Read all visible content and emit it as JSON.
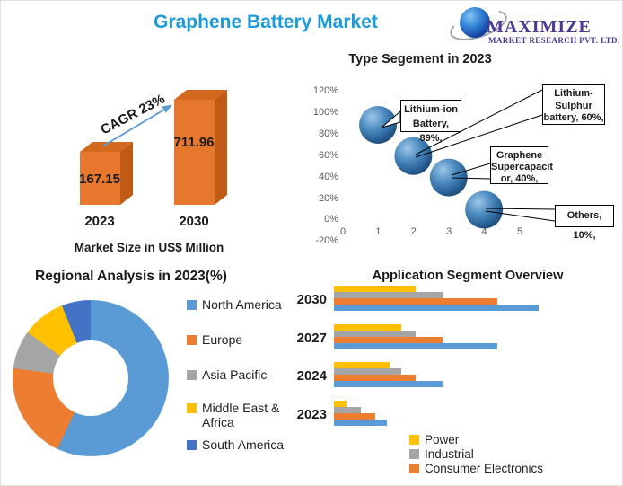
{
  "header": {
    "title": "Graphene Battery Market",
    "logo": {
      "name": "MAXIMIZE",
      "subtitle": "MARKET RESEARCH PVT. LTD."
    }
  },
  "palette": {
    "title_blue": "#1B9BD8",
    "logo_purple": "#4C3A93",
    "chart_blue": "#5B9BD5",
    "orange": "#ED7D31",
    "gray": "#A5A5A5",
    "yellow": "#FFC000",
    "dark_blue": "#4472C4"
  },
  "chart_data": [
    {
      "id": "market_size",
      "type": "bar",
      "title": "Market Size in US$ Million",
      "annotation": "CAGR 23%",
      "categories": [
        "2023",
        "2030"
      ],
      "values": [
        167.15,
        711.96
      ],
      "value_labels": [
        "167.15",
        "711.96"
      ],
      "ylabel": "",
      "colors": {
        "front": "#E8772E",
        "side": "#BF5B15",
        "top": "#D2691E"
      },
      "arrow_color": "#5B9BD5"
    },
    {
      "id": "type_segment",
      "type": "scatter",
      "title": "Type Segement in 2023",
      "x_ticks": [
        "0",
        "1",
        "2",
        "3",
        "4",
        "5"
      ],
      "y_ticks": [
        "120%",
        "100%",
        "80%",
        "60%",
        "40%",
        "20%",
        "0%",
        "-20%"
      ],
      "xlim": [
        0,
        5
      ],
      "ylim_pct": [
        -20,
        120
      ],
      "bubble_color": "#2E75B6",
      "points": [
        {
          "x": 1,
          "y_pct": 89
        },
        {
          "x": 2,
          "y_pct": 60
        },
        {
          "x": 3,
          "y_pct": 40
        },
        {
          "x": 4,
          "y_pct": 10
        }
      ],
      "callouts": [
        {
          "lines": [
            "Lithium-ion",
            "Battery, 89%,"
          ]
        },
        {
          "lines": [
            "Lithium-",
            "Sulphur",
            "battery, 60%,"
          ]
        },
        {
          "lines": [
            "Graphene",
            "Supercapacit",
            "or, 40%,"
          ]
        },
        {
          "lines": [
            "Others, 10%,"
          ]
        }
      ]
    },
    {
      "id": "regional",
      "type": "pie",
      "donut": true,
      "title": "Regional Analysis in 2023(%)",
      "labels": [
        "North America",
        "Europe",
        "Asia Pacific",
        "Middle East & Africa",
        "South America"
      ],
      "values_pct_est": [
        57,
        20,
        8,
        9,
        6
      ],
      "colors": [
        "#5B9BD5",
        "#ED7D31",
        "#A5A5A5",
        "#FFC000",
        "#4472C4"
      ],
      "legend_position": "right"
    },
    {
      "id": "application",
      "type": "bar",
      "orientation": "horizontal",
      "title": "Application Segment Overview",
      "categories": [
        "2030",
        "2027",
        "2024",
        "2023"
      ],
      "values_unit": "relative length, est. (max = 100)",
      "series": [
        {
          "name": "Power",
          "color": "#FFC000",
          "values": [
            40,
            33,
            27,
            6
          ]
        },
        {
          "name": "Industrial",
          "color": "#A5A5A5",
          "values": [
            53,
            40,
            33,
            13
          ]
        },
        {
          "name": "Consumer Electronics",
          "color": "#ED7D31",
          "values": [
            80,
            53,
            40,
            20
          ]
        },
        {
          "name": "",
          "color": "#5B9BD5",
          "values": [
            100,
            80,
            53,
            26
          ]
        }
      ],
      "legend": [
        "Power",
        "Industrial",
        "Consumer Electronics"
      ],
      "legend_position": "bottom"
    }
  ]
}
